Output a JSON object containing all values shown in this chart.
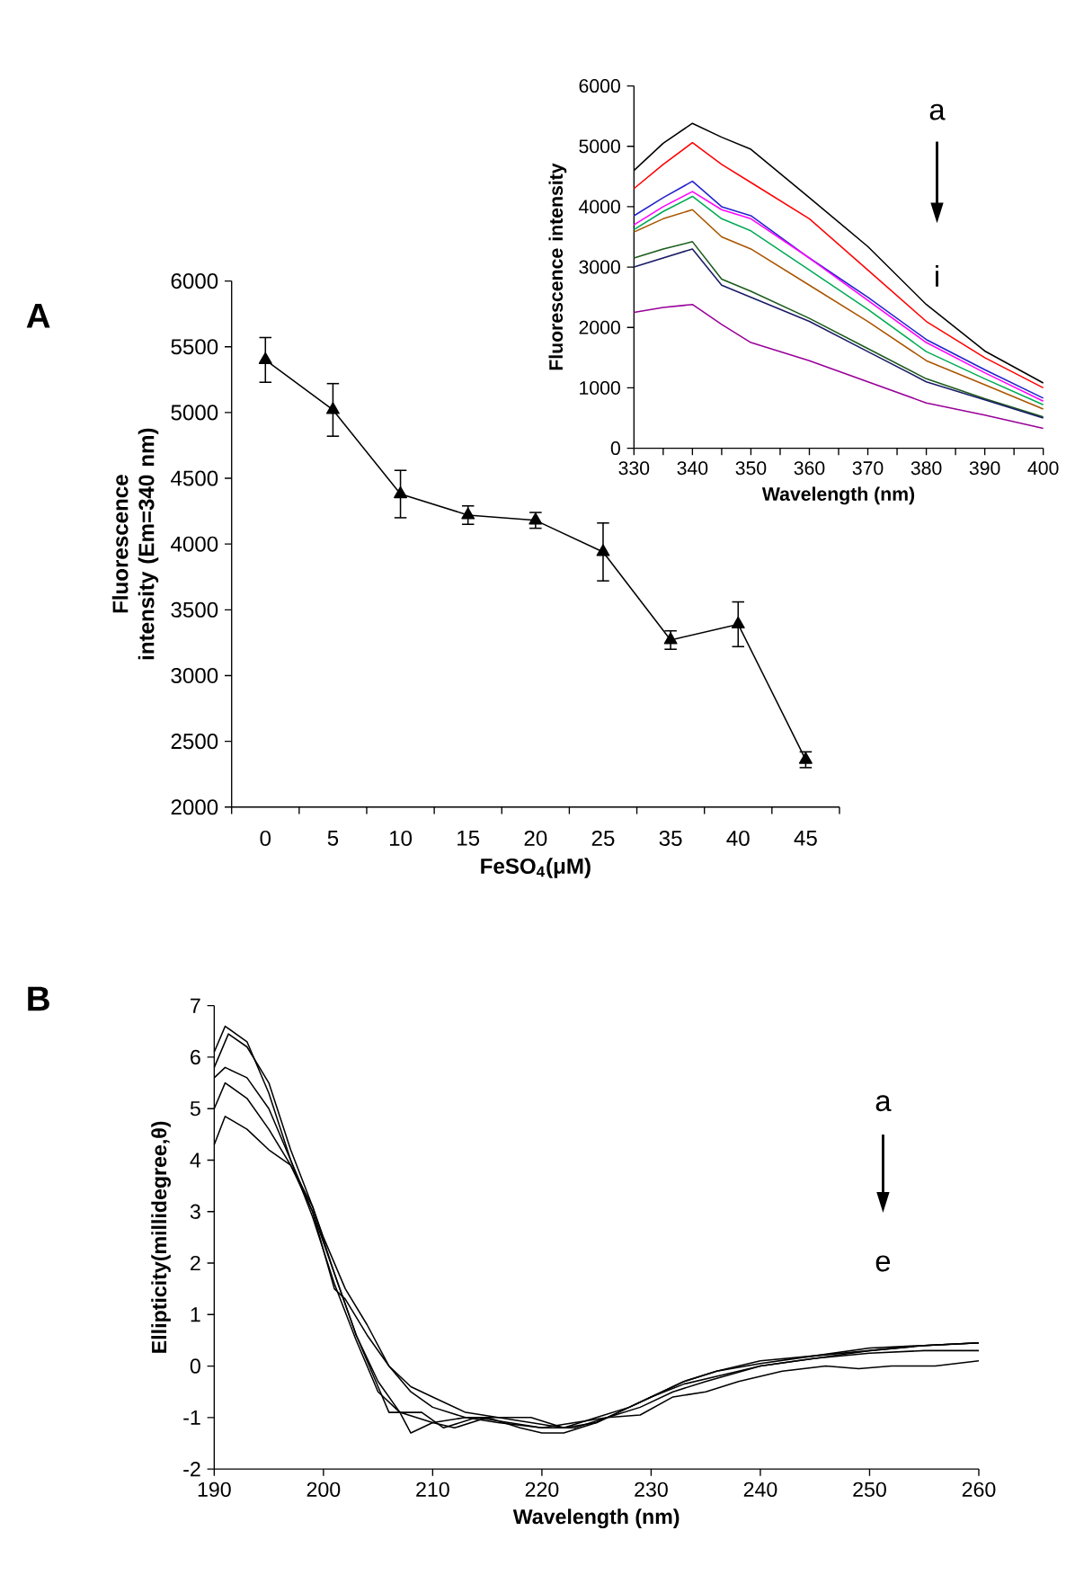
{
  "chart_data": [
    {
      "type": "line",
      "xlabel": "FeSO$_{4}$(μM)",
      "ylabel": "Fluorescence intensity (Em=340 nm)",
      "annotations": [
        "A"
      ],
      "categories": [
        "0",
        "5",
        "10",
        "15",
        "20",
        "25",
        "35",
        "40",
        "45"
      ],
      "values": [
        5400,
        5020,
        4380,
        4220,
        4180,
        3940,
        3270,
        3390,
        2360
      ],
      "errors": [
        170,
        200,
        180,
        70,
        60,
        220,
        70,
        170,
        60
      ],
      "color": "#000000",
      "marker": "triangle",
      "ylim": [
        2000,
        6000
      ],
      "yticks": [
        2000,
        2500,
        3000,
        3500,
        4000,
        4500,
        5000,
        5500,
        6000
      ]
    },
    {
      "type": "line",
      "xlabel": "Wavelength  (nm)",
      "ylabel": "Fluorescence  intensity",
      "annotations": [
        "a",
        "i"
      ],
      "x": [
        330,
        335,
        340,
        345,
        350,
        360,
        370,
        380,
        390,
        400
      ],
      "series": [
        {
          "color": "#000000",
          "values": [
            4600,
            5050,
            5380,
            5150,
            4950,
            4150,
            3340,
            2380,
            1610,
            1080
          ]
        },
        {
          "color": "#ff0000",
          "values": [
            4300,
            4700,
            5060,
            4700,
            4400,
            3800,
            2950,
            2100,
            1500,
            1000
          ]
        },
        {
          "color": "#2222cc",
          "values": [
            3850,
            4150,
            4420,
            4000,
            3850,
            3150,
            2500,
            1800,
            1300,
            830
          ]
        },
        {
          "color": "#ff00ff",
          "values": [
            3700,
            4000,
            4250,
            3950,
            3800,
            3150,
            2450,
            1750,
            1250,
            780
          ]
        },
        {
          "color": "#00aa55",
          "values": [
            3620,
            3920,
            4170,
            3800,
            3600,
            2950,
            2300,
            1600,
            1150,
            720
          ]
        },
        {
          "color": "#aa5500",
          "values": [
            3580,
            3800,
            3950,
            3500,
            3300,
            2700,
            2100,
            1450,
            1050,
            650
          ]
        },
        {
          "color": "#1a5a1a",
          "values": [
            3150,
            3300,
            3420,
            2800,
            2600,
            2150,
            1650,
            1150,
            820,
            520
          ]
        },
        {
          "color": "#1a1a66",
          "values": [
            3000,
            3150,
            3300,
            2700,
            2500,
            2100,
            1600,
            1100,
            800,
            500
          ]
        },
        {
          "color": "#990099",
          "values": [
            2250,
            2330,
            2380,
            2050,
            1750,
            1450,
            1100,
            750,
            550,
            330
          ]
        }
      ],
      "marker": "none",
      "xlim": [
        330,
        400
      ],
      "xticks": [
        330,
        {
          "value": 335,
          "label": null
        },
        340,
        {
          "value": 345,
          "label": null
        },
        350,
        {
          "value": 355,
          "label": null
        },
        360,
        {
          "value": 365,
          "label": null
        },
        370,
        {
          "value": 375,
          "label": null
        },
        380,
        {
          "value": 385,
          "label": null
        },
        390,
        {
          "value": 395,
          "label": null
        },
        400
      ],
      "ylim": [
        0,
        6000
      ],
      "yticks": [
        0,
        1000,
        2000,
        3000,
        4000,
        5000,
        6000
      ]
    },
    {
      "type": "line",
      "xlabel": "Wavelength (nm)",
      "ylabel": "Ellipticity(millidegree,θ)",
      "annotations": [
        "B",
        "a",
        "e"
      ],
      "series": [
        {
          "color": "#000000",
          "x": [
            190,
            191,
            193,
            195,
            197,
            199,
            201,
            203,
            205,
            207,
            208,
            210,
            212,
            215,
            218,
            220,
            222,
            225,
            228,
            230,
            233,
            236,
            240,
            245,
            250,
            255,
            260
          ],
          "values": [
            6.1,
            6.6,
            6.3,
            5.3,
            4.0,
            2.9,
            1.6,
            0.5,
            -0.5,
            -0.9,
            -1.3,
            -1.1,
            -1.2,
            -1.0,
            -1.2,
            -1.3,
            -1.3,
            -1.1,
            -0.8,
            -0.6,
            -0.3,
            -0.1,
            0.1,
            0.2,
            0.35,
            0.4,
            0.45
          ]
        },
        {
          "color": "#000000",
          "x": [
            190,
            191.3,
            193,
            195,
            197,
            199,
            200,
            202,
            204,
            206,
            208,
            210,
            213,
            216,
            219,
            222,
            225,
            228,
            230,
            233,
            236,
            240,
            245,
            250,
            255,
            260
          ],
          "values": [
            5.8,
            6.45,
            6.2,
            5.5,
            4.2,
            3.1,
            2.5,
            1.5,
            0.8,
            0.0,
            -0.5,
            -0.8,
            -1.0,
            -1.0,
            -1.1,
            -1.2,
            -1.1,
            -0.8,
            -0.6,
            -0.3,
            -0.1,
            0.05,
            0.2,
            0.3,
            0.4,
            0.45
          ]
        },
        {
          "color": "#000000",
          "x": [
            190,
            191,
            193,
            195,
            197,
            199,
            201,
            203,
            205,
            206,
            209,
            211,
            214,
            217,
            220,
            223,
            226,
            229,
            232,
            235,
            240,
            245,
            250,
            255,
            260
          ],
          "values": [
            5.6,
            5.8,
            5.6,
            5.0,
            4.0,
            3.0,
            1.8,
            0.6,
            -0.4,
            -0.9,
            -0.9,
            -1.2,
            -1.0,
            -1.1,
            -1.2,
            -1.2,
            -1.0,
            -0.8,
            -0.5,
            -0.3,
            0.0,
            0.15,
            0.25,
            0.3,
            0.3
          ]
        },
        {
          "color": "#000000",
          "x": [
            190,
            191,
            193,
            195,
            197,
            199,
            201,
            202,
            204,
            206,
            208,
            210,
            213,
            216,
            219,
            222,
            225,
            228,
            230,
            233,
            236,
            240,
            245,
            250,
            255,
            260
          ],
          "values": [
            5.0,
            5.5,
            5.2,
            4.6,
            3.9,
            3.0,
            1.5,
            1.3,
            0.6,
            0.0,
            -0.4,
            -0.6,
            -0.9,
            -1.0,
            -1.0,
            -1.2,
            -1.0,
            -0.8,
            -0.6,
            -0.35,
            -0.2,
            0.0,
            0.15,
            0.3,
            0.4,
            0.45
          ]
        },
        {
          "color": "#000000",
          "x": [
            190,
            191,
            193,
            195,
            197,
            199,
            201,
            203,
            205,
            207,
            210,
            213,
            216,
            220,
            223,
            226,
            229,
            232,
            235,
            238,
            242,
            246,
            249,
            252,
            256,
            260
          ],
          "values": [
            4.3,
            4.85,
            4.6,
            4.2,
            3.9,
            3.1,
            1.8,
            0.6,
            -0.3,
            -0.9,
            -1.1,
            -1.0,
            -1.1,
            -1.2,
            -1.1,
            -1.0,
            -0.95,
            -0.6,
            -0.5,
            -0.3,
            -0.1,
            0.0,
            -0.05,
            0.0,
            0.0,
            0.1
          ]
        }
      ],
      "marker": "none",
      "xlim": [
        190,
        260
      ],
      "xticks": [
        190,
        200,
        210,
        220,
        230,
        240,
        250,
        260
      ],
      "ylim": [
        -2,
        7
      ],
      "yticks": [
        -2,
        -1,
        0,
        1,
        2,
        3,
        4,
        5,
        6,
        7
      ]
    }
  ]
}
